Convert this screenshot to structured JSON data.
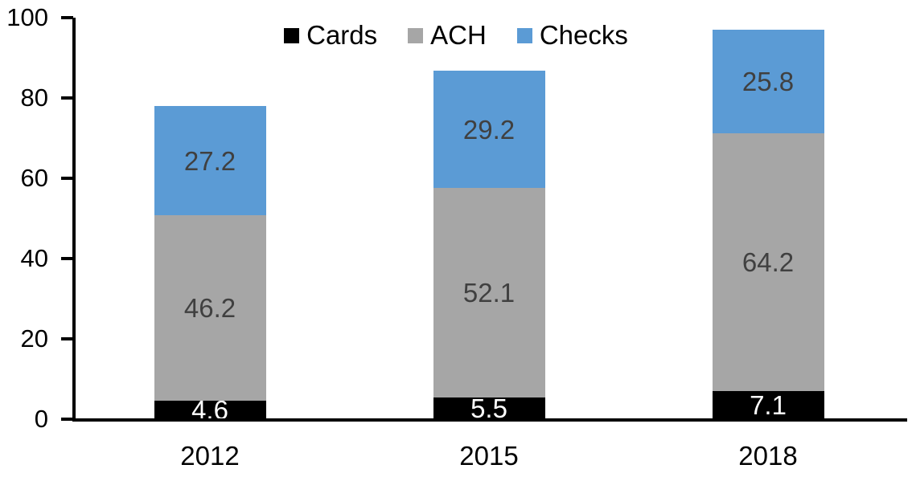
{
  "chart_data": {
    "type": "bar",
    "stacked": true,
    "categories": [
      "2012",
      "2015",
      "2018"
    ],
    "series": [
      {
        "name": "Cards",
        "color": "#000000",
        "label_color": "#ffffff",
        "values": [
          4.6,
          5.5,
          7.1
        ]
      },
      {
        "name": "ACH",
        "color": "#a6a6a6",
        "label_color": "#404040",
        "values": [
          46.2,
          52.1,
          64.2
        ]
      },
      {
        "name": "Checks",
        "color": "#5b9bd5",
        "label_color": "#404040",
        "values": [
          27.2,
          29.2,
          25.8
        ]
      }
    ],
    "totals": [
      78.0,
      86.8,
      97.1
    ],
    "yticks": [
      0,
      20,
      40,
      60,
      80,
      100
    ],
    "ylim": [
      0,
      100
    ],
    "legend_position": "top",
    "legend_labels": [
      "Cards",
      "ACH",
      "Checks"
    ],
    "grid": false,
    "axis_color": "#000000",
    "background_color": "#ffffff"
  }
}
